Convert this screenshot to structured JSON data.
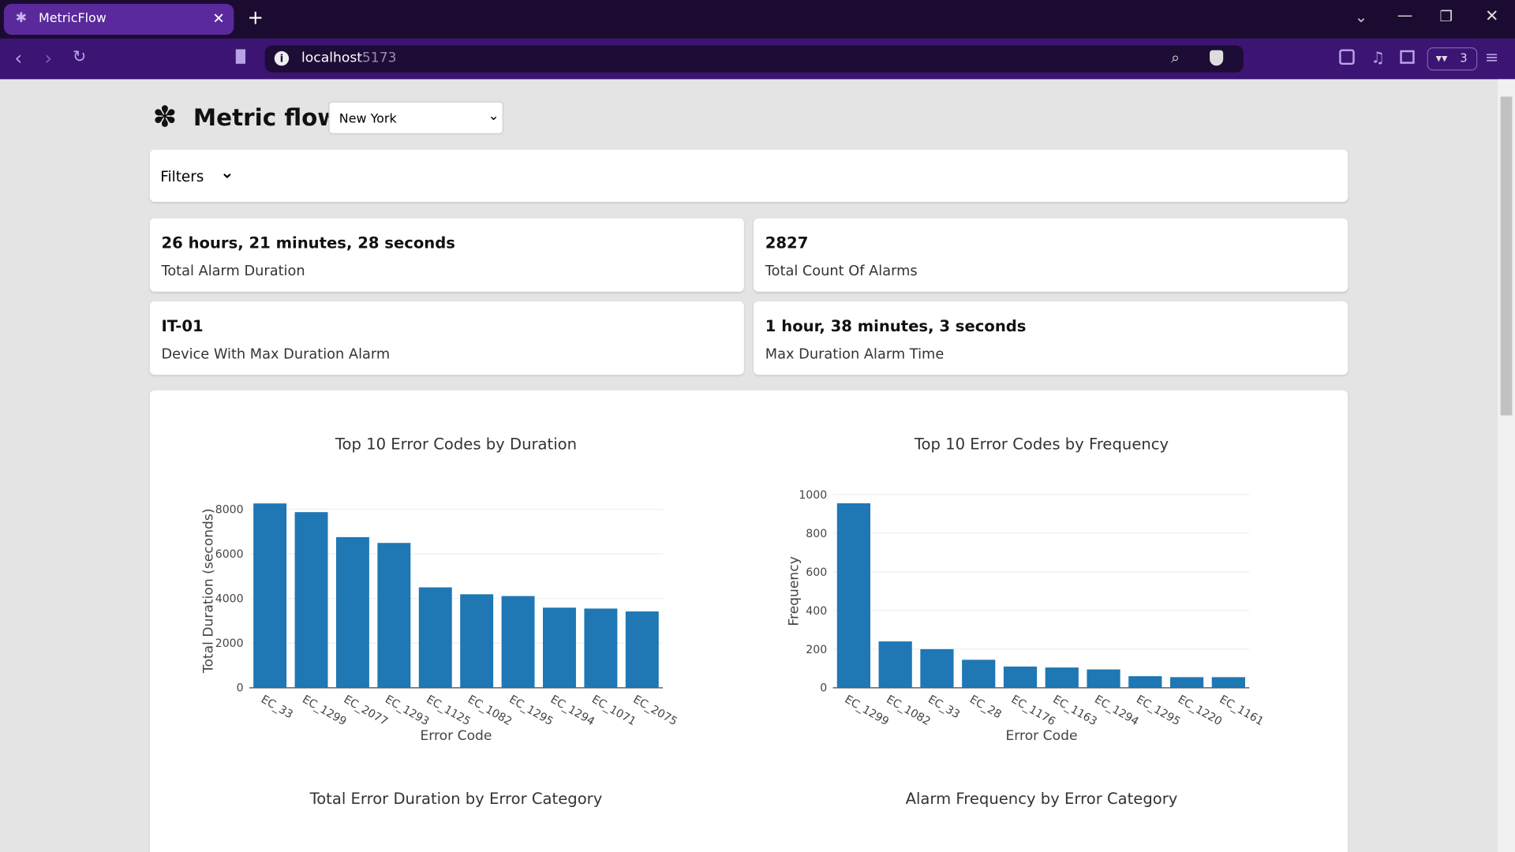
{
  "browser": {
    "tab_title": "MetricFlow",
    "url_host": "localhost",
    "url_port": ":5173",
    "extension_badge": "3"
  },
  "app": {
    "brand": "Metric flow",
    "city": "New York",
    "filters_label": "Filters"
  },
  "cards": [
    {
      "value": "26 hours, 21 minutes, 28 seconds",
      "label": "Total Alarm Duration"
    },
    {
      "value": "2827",
      "label": "Total Count Of Alarms"
    },
    {
      "value": "IT-01",
      "label": "Device With Max Duration Alarm"
    },
    {
      "value": "1 hour, 38 minutes, 3 seconds",
      "label": "Max Duration Alarm Time"
    }
  ],
  "chart_data": [
    {
      "type": "bar",
      "title": "Top 10 Error Codes by Duration",
      "x_label": "Error Code",
      "y_label": "Total Duration (seconds)",
      "categories": [
        "EC_33",
        "EC_1299",
        "EC_2077",
        "EC_1293",
        "EC_1125",
        "EC_1082",
        "EC_1295",
        "EC_1294",
        "EC_1071",
        "EC_2075"
      ],
      "values": [
        8260,
        7870,
        6750,
        6490,
        4500,
        4190,
        4110,
        3590,
        3550,
        3420
      ],
      "color": "#1f77b4",
      "ylim": [
        0,
        8700
      ],
      "yticks": [
        0,
        2000,
        4000,
        6000,
        8000
      ],
      "grid": true
    },
    {
      "type": "bar",
      "title": "Top 10 Error Codes by Frequency",
      "x_label": "Error Code",
      "y_label": "Frequency",
      "categories": [
        "EC_1299",
        "EC_1082",
        "EC_33",
        "EC_28",
        "EC_1176",
        "EC_1163",
        "EC_1294",
        "EC_1295",
        "EC_1220",
        "EC_1161"
      ],
      "values": [
        955,
        240,
        200,
        145,
        110,
        105,
        95,
        60,
        55,
        55
      ],
      "color": "#1f77b4",
      "ylim": [
        0,
        1000
      ],
      "yticks": [
        0,
        200,
        400,
        600,
        800,
        1000
      ],
      "grid": true
    }
  ],
  "more_charts": [
    "Total Error Duration by Error Category",
    "Alarm Frequency by Error Category"
  ]
}
